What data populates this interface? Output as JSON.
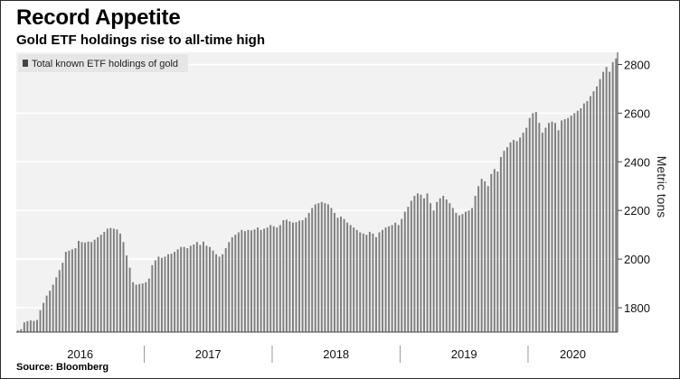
{
  "title": "Record Appetite",
  "subtitle": "Gold ETF holdings rise to all-time high",
  "source": "Source: Bloomberg",
  "colors": {
    "bar": "#7f7f7f",
    "plot_bg": "#f2f2f2",
    "legend_bg": "#e6e6e6",
    "axis": "#444444"
  },
  "chart_data": {
    "type": "bar",
    "title": "Record Appetite",
    "subtitle": "Gold ETF holdings rise to all-time high",
    "legend": [
      "Total known ETF holdings of gold"
    ],
    "legend_position": "top-left",
    "xlabel": "",
    "ylabel": "Metric tons",
    "y_axis_side": "right",
    "ylim": [
      1700,
      2850
    ],
    "yticks": [
      1800,
      2000,
      2200,
      2400,
      2600,
      2800
    ],
    "grid": true,
    "years": [
      "2016",
      "2017",
      "2018",
      "2019",
      "2020"
    ],
    "series": [
      {
        "name": "Total known ETF holdings of gold",
        "values": [
          1707,
          1712,
          1740,
          1745,
          1748,
          1746,
          1750,
          1790,
          1820,
          1850,
          1870,
          1895,
          1925,
          1955,
          1985,
          2030,
          2035,
          2040,
          2045,
          2075,
          2070,
          2068,
          2072,
          2070,
          2080,
          2090,
          2100,
          2112,
          2125,
          2128,
          2125,
          2122,
          2105,
          2070,
          2015,
          1965,
          1905,
          1895,
          1898,
          1900,
          1905,
          1920,
          1975,
          1995,
          2010,
          2005,
          2010,
          2020,
          2022,
          2030,
          2040,
          2050,
          2050,
          2045,
          2055,
          2060,
          2070,
          2058,
          2072,
          2055,
          2050,
          2035,
          2020,
          2010,
          2020,
          2045,
          2070,
          2090,
          2100,
          2110,
          2120,
          2115,
          2120,
          2118,
          2122,
          2130,
          2120,
          2125,
          2130,
          2140,
          2135,
          2130,
          2140,
          2160,
          2162,
          2155,
          2150,
          2152,
          2158,
          2160,
          2170,
          2190,
          2210,
          2225,
          2230,
          2235,
          2230,
          2225,
          2210,
          2190,
          2170,
          2175,
          2165,
          2150,
          2140,
          2130,
          2120,
          2110,
          2105,
          2100,
          2112,
          2105,
          2090,
          2110,
          2120,
          2130,
          2135,
          2140,
          2150,
          2140,
          2165,
          2195,
          2215,
          2240,
          2260,
          2270,
          2265,
          2250,
          2270,
          2230,
          2200,
          2235,
          2250,
          2260,
          2245,
          2230,
          2210,
          2190,
          2180,
          2185,
          2195,
          2200,
          2210,
          2260,
          2300,
          2330,
          2320,
          2300,
          2350,
          2370,
          2360,
          2420,
          2445,
          2460,
          2480,
          2490,
          2485,
          2500,
          2520,
          2540,
          2580,
          2600,
          2605,
          2560,
          2520,
          2540,
          2560,
          2565,
          2560,
          2530,
          2570,
          2575,
          2580,
          2590,
          2600,
          2610,
          2620,
          2640,
          2650,
          2670,
          2690,
          2710,
          2740,
          2770,
          2790,
          2770,
          2810,
          2825
        ]
      }
    ]
  }
}
